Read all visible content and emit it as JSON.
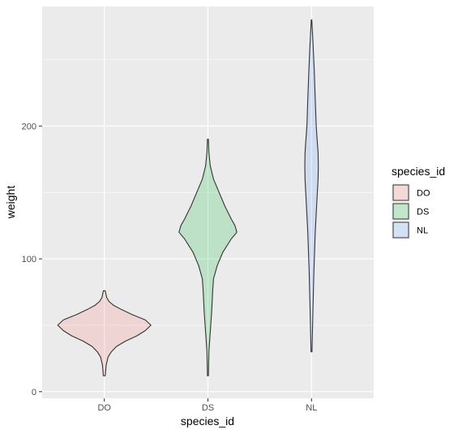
{
  "chart_data": {
    "type": "violin",
    "xlabel": "species_id",
    "ylabel": "weight",
    "categories": [
      "DO",
      "DS",
      "NL"
    ],
    "ylim": [
      -5,
      290
    ],
    "yticks": [
      0,
      100,
      200
    ],
    "grid": true,
    "legend": {
      "title": "species_id",
      "placement": "right",
      "entries": [
        "DO",
        "DS",
        "NL"
      ]
    },
    "series": [
      {
        "category": "DO",
        "fill": "#f8766d",
        "min": 12,
        "max": 76,
        "profile": [
          [
            12,
            0.02
          ],
          [
            20,
            0.04
          ],
          [
            26,
            0.08
          ],
          [
            30,
            0.15
          ],
          [
            34,
            0.26
          ],
          [
            38,
            0.45
          ],
          [
            42,
            0.7
          ],
          [
            46,
            0.88
          ],
          [
            50,
            1.0
          ],
          [
            54,
            0.88
          ],
          [
            58,
            0.6
          ],
          [
            62,
            0.36
          ],
          [
            65,
            0.2
          ],
          [
            68,
            0.1
          ],
          [
            71,
            0.05
          ],
          [
            76,
            0.02
          ]
        ]
      },
      {
        "category": "DS",
        "fill": "#00ba38",
        "min": 12,
        "max": 190,
        "profile": [
          [
            12,
            0.01
          ],
          [
            30,
            0.02
          ],
          [
            45,
            0.05
          ],
          [
            60,
            0.08
          ],
          [
            75,
            0.1
          ],
          [
            85,
            0.12
          ],
          [
            95,
            0.2
          ],
          [
            105,
            0.32
          ],
          [
            115,
            0.5
          ],
          [
            120,
            0.62
          ],
          [
            125,
            0.58
          ],
          [
            130,
            0.5
          ],
          [
            140,
            0.36
          ],
          [
            150,
            0.24
          ],
          [
            160,
            0.12
          ],
          [
            170,
            0.05
          ],
          [
            180,
            0.02
          ],
          [
            190,
            0.01
          ]
        ]
      },
      {
        "category": "NL",
        "fill": "#619cff",
        "min": 30,
        "max": 280,
        "profile": [
          [
            30,
            0.01
          ],
          [
            60,
            0.03
          ],
          [
            90,
            0.05
          ],
          [
            120,
            0.08
          ],
          [
            140,
            0.11
          ],
          [
            160,
            0.14
          ],
          [
            170,
            0.145
          ],
          [
            180,
            0.14
          ],
          [
            190,
            0.12
          ],
          [
            200,
            0.1
          ],
          [
            220,
            0.08
          ],
          [
            240,
            0.06
          ],
          [
            260,
            0.035
          ],
          [
            270,
            0.02
          ],
          [
            280,
            0.005
          ]
        ]
      }
    ]
  }
}
